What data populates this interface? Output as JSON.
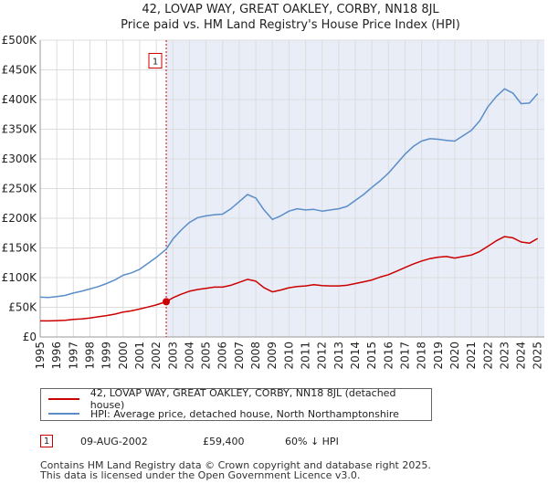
{
  "chart_data": {
    "type": "line",
    "title": "42, LOVAP WAY, GREAT OAKLEY, CORBY, NN18 8JL",
    "subtitle": "Price paid vs. HM Land Registry's House Price Index (HPI)",
    "xlabel": "",
    "ylabel": "",
    "xlim": [
      1995,
      2025.4
    ],
    "ylim": [
      0,
      500000
    ],
    "grid": true,
    "y_ticks": [
      0,
      50000,
      100000,
      150000,
      200000,
      250000,
      300000,
      350000,
      400000,
      450000,
      500000
    ],
    "y_tick_labels": [
      "£0",
      "£50K",
      "£100K",
      "£150K",
      "£200K",
      "£250K",
      "£300K",
      "£350K",
      "£400K",
      "£450K",
      "£500K"
    ],
    "x_ticks": [
      1995,
      1996,
      1997,
      1998,
      1999,
      2000,
      2001,
      2002,
      2003,
      2004,
      2005,
      2006,
      2007,
      2008,
      2009,
      2010,
      2011,
      2012,
      2013,
      2014,
      2015,
      2016,
      2017,
      2018,
      2019,
      2020,
      2021,
      2022,
      2023,
      2024,
      2025
    ],
    "x_tick_labels": [
      "1995",
      "1996",
      "1997",
      "1998",
      "1999",
      "2000",
      "2001",
      "2002",
      "2003",
      "2004",
      "2005",
      "2006",
      "2007",
      "2008",
      "2009",
      "2010",
      "2011",
      "2012",
      "2013",
      "2014",
      "2015",
      "2016",
      "2017",
      "2018",
      "2019",
      "2020",
      "2021",
      "2022",
      "2023",
      "2024",
      "2025"
    ],
    "series": [
      {
        "name": "42, LOVAP WAY, GREAT OAKLEY, CORBY, NN18 8JL (detached house)",
        "color": "#cc0000",
        "x": [
          1995.0,
          1995.5,
          1996.0,
          1996.5,
          1997.0,
          1997.5,
          1998.0,
          1998.5,
          1999.0,
          1999.5,
          2000.0,
          2000.5,
          2001.0,
          2001.5,
          2002.0,
          2002.6,
          2003.0,
          2003.5,
          2004.0,
          2004.5,
          2005.0,
          2005.5,
          2006.0,
          2006.5,
          2007.0,
          2007.5,
          2008.0,
          2008.5,
          2009.0,
          2009.5,
          2010.0,
          2010.5,
          2011.0,
          2011.5,
          2012.0,
          2012.5,
          2013.0,
          2013.5,
          2014.0,
          2014.5,
          2015.0,
          2015.5,
          2016.0,
          2016.5,
          2017.0,
          2017.5,
          2018.0,
          2018.5,
          2019.0,
          2019.5,
          2020.0,
          2020.5,
          2021.0,
          2021.5,
          2022.0,
          2022.5,
          2023.0,
          2023.5,
          2024.0,
          2024.5,
          2025.0
        ],
        "values": [
          27000,
          27000,
          27500,
          28000,
          29500,
          30500,
          32000,
          34000,
          36000,
          38500,
          42000,
          44000,
          47000,
          50500,
          54000,
          59400,
          66000,
          72000,
          77000,
          80000,
          82000,
          84000,
          84000,
          87000,
          92000,
          97000,
          94000,
          83000,
          76000,
          79000,
          83000,
          85000,
          86000,
          88000,
          86500,
          86000,
          86000,
          87000,
          90000,
          93000,
          96000,
          101000,
          105000,
          111000,
          117000,
          123000,
          128000,
          132000,
          134500,
          135500,
          133000,
          135500,
          138000,
          144000,
          153000,
          162000,
          169000,
          167000,
          160000,
          158000,
          166000
        ]
      },
      {
        "name": "HPI: Average price, detached house, North Northamptonshire",
        "color": "#5b8ec9",
        "x": [
          1995.0,
          1995.5,
          1996.0,
          1996.5,
          1997.0,
          1997.5,
          1998.0,
          1998.5,
          1999.0,
          1999.5,
          2000.0,
          2000.5,
          2001.0,
          2001.5,
          2002.0,
          2002.6,
          2003.0,
          2003.5,
          2004.0,
          2004.5,
          2005.0,
          2005.5,
          2006.0,
          2006.5,
          2007.0,
          2007.5,
          2008.0,
          2008.5,
          2009.0,
          2009.5,
          2010.0,
          2010.5,
          2011.0,
          2011.5,
          2012.0,
          2012.5,
          2013.0,
          2013.5,
          2014.0,
          2014.5,
          2015.0,
          2015.5,
          2016.0,
          2016.5,
          2017.0,
          2017.5,
          2018.0,
          2018.5,
          2019.0,
          2019.5,
          2020.0,
          2020.5,
          2021.0,
          2021.5,
          2022.0,
          2022.5,
          2023.0,
          2023.5,
          2024.0,
          2024.5,
          2025.0
        ],
        "values": [
          67000,
          66500,
          68000,
          70000,
          74000,
          77000,
          81000,
          85000,
          90000,
          96000,
          104000,
          108000,
          114000,
          124000,
          134000,
          148000,
          165000,
          180000,
          193000,
          201000,
          204000,
          206000,
          207000,
          216000,
          228000,
          240000,
          234000,
          214000,
          198000,
          204000,
          212000,
          216000,
          214000,
          215000,
          212000,
          214000,
          216000,
          220000,
          230000,
          240000,
          252000,
          263000,
          276000,
          292000,
          308000,
          321000,
          330000,
          334000,
          333000,
          331000,
          330000,
          339000,
          348000,
          364000,
          388000,
          405000,
          418000,
          411000,
          393000,
          394000,
          410000
        ]
      }
    ],
    "annotations": [
      {
        "label": "1",
        "date": 2002.6,
        "value": 59400
      }
    ]
  },
  "legend": {
    "property_label": "42, LOVAP WAY, GREAT OAKLEY, CORBY, NN18 8JL (detached house)",
    "hpi_label": "HPI: Average price, detached house, North Northamptonshire"
  },
  "transactions": [
    {
      "marker": "1",
      "date": "09-AUG-2002",
      "price": "£59,400",
      "hpi_change": "60% ↓ HPI"
    }
  ],
  "footer": {
    "line1": "Contains HM Land Registry data © Crown copyright and database right 2025.",
    "line2": "This data is licensed under the Open Government Licence v3.0."
  },
  "colors": {
    "property": "#cc0000",
    "hpi": "#5b8ec9",
    "grid": "#dddddd",
    "shade": "#e8edf7"
  }
}
